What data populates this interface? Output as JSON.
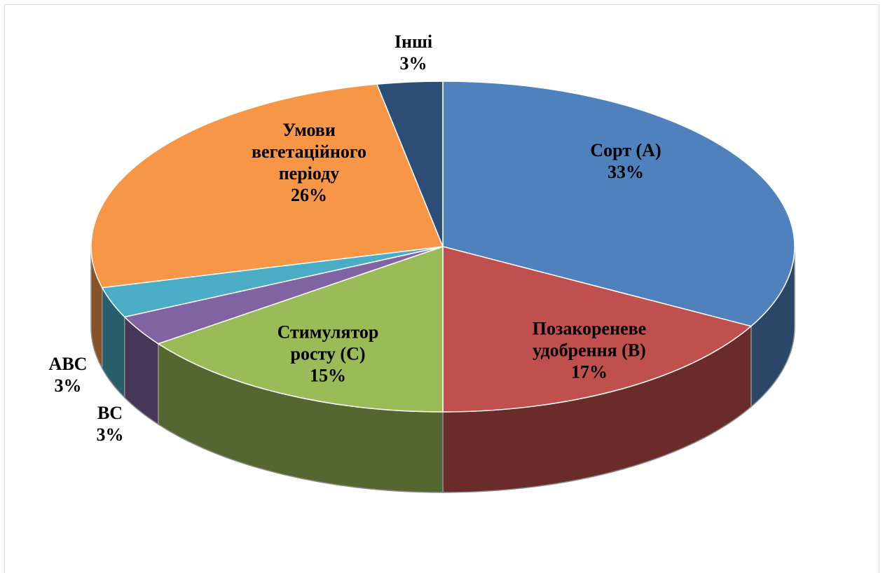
{
  "chart_data": {
    "type": "pie",
    "categories": [
      "Сорт (A)",
      "Позакореневе удобрення (B)",
      "Стимулятор росту (C)",
      "BC",
      "ABC",
      "Умови вегетаційного періоду",
      "Інші"
    ],
    "values": [
      33,
      17,
      15,
      3,
      3,
      26,
      3
    ],
    "value_labels": [
      "33%",
      "17%",
      "15%",
      "3%",
      "3%",
      "26%",
      "3%"
    ],
    "colors": [
      "#4f81bd",
      "#c0504d",
      "#9bbb59",
      "#8064a2",
      "#4bacc6",
      "#f79646",
      "#2c4d75"
    ]
  }
}
